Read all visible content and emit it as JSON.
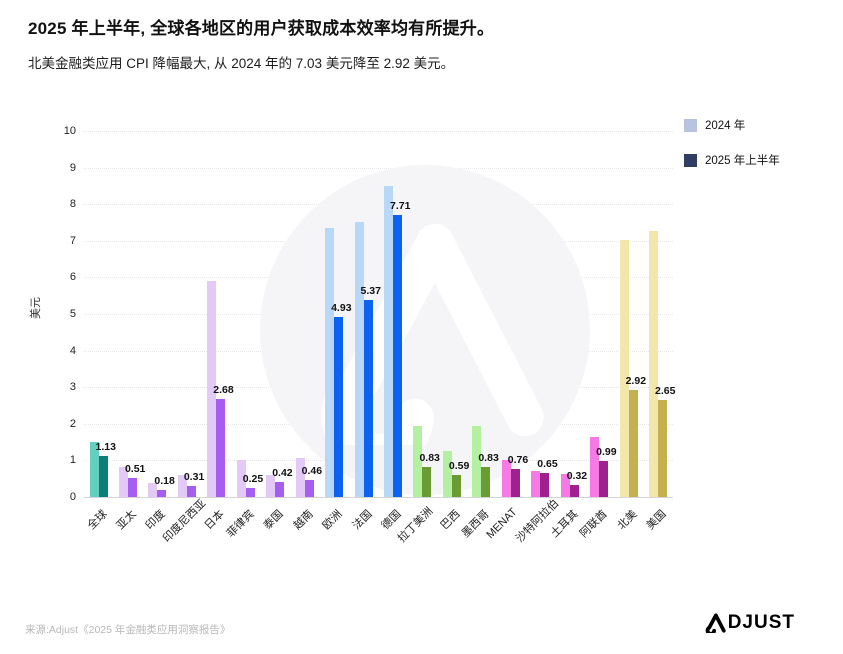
{
  "header": {
    "title": "2025 年上半年, 全球各地区的用户获取成本效率均有所提升。",
    "subtitle": "北美金融类应用 CPI 降幅最大, 从 2024 年的 7.03 美元降至 2.92 美元。"
  },
  "legend": {
    "items": [
      {
        "label": "2024 年",
        "color": "#b8c3e0"
      },
      {
        "label": "2025 年上半年",
        "color": "#2f3e62"
      }
    ]
  },
  "chart_data": {
    "type": "bar",
    "title": "2025 年上半年, 全球各地区的用户获取成本效率均有所提升。",
    "xlabel": "",
    "ylabel": "美元",
    "ylim": [
      0,
      10
    ],
    "yticks": [
      0,
      1,
      2,
      3,
      4,
      5,
      6,
      7,
      8,
      9,
      10
    ],
    "grid": true,
    "legend_position": "top-right",
    "categories": [
      "全球",
      "亚太",
      "印度",
      "印度尼西亚",
      "日本",
      "菲律宾",
      "泰国",
      "越南",
      "欧洲",
      "法国",
      "德国",
      "拉丁美洲",
      "巴西",
      "墨西哥",
      "MENAT",
      "沙特阿拉伯",
      "土耳其",
      "阿联酋",
      "北美",
      "美国"
    ],
    "series": [
      {
        "name": "2024 年",
        "values": [
          1.5,
          0.82,
          0.38,
          0.6,
          5.9,
          1.0,
          0.6,
          1.07,
          7.36,
          7.52,
          8.51,
          1.95,
          1.25,
          1.95,
          1.0,
          0.7,
          0.62,
          1.63,
          7.03,
          7.27
        ]
      },
      {
        "name": "2025 年上半年",
        "values": [
          1.13,
          0.51,
          0.18,
          0.31,
          2.68,
          0.25,
          0.42,
          0.46,
          4.93,
          5.37,
          7.71,
          0.83,
          0.59,
          0.83,
          0.76,
          0.65,
          0.32,
          0.99,
          2.92,
          2.65
        ]
      }
    ],
    "bar_labels": [
      "1.13",
      "0.51",
      "0.18",
      "0.31",
      "2.68",
      "0.25",
      "0.42",
      "0.46",
      "4.93",
      "5.37",
      "7.71",
      "0.83",
      "0.59",
      "0.83",
      "0.76",
      "0.65",
      "0.32",
      "0.99",
      "2.92",
      "2.65"
    ],
    "bar_labels_on_series": "2025 年上半年",
    "category_color_keys": [
      "teal",
      "purple",
      "purple",
      "purple",
      "purple",
      "purple",
      "purple",
      "purple",
      "blue",
      "blue",
      "blue",
      "green",
      "green",
      "green",
      "pink",
      "pink",
      "pink",
      "pink",
      "yellow",
      "yellow"
    ],
    "palette": {
      "teal": {
        "light": "#63cfc1",
        "dark": "#0e7f78"
      },
      "purple": {
        "light": "#e2c9f6",
        "dark": "#a55ef0"
      },
      "blue": {
        "light": "#b9d7f7",
        "dark": "#0b63f0"
      },
      "green": {
        "light": "#b3f0a1",
        "dark": "#6b9c34"
      },
      "pink": {
        "light": "#f779e6",
        "dark": "#9f2190"
      },
      "yellow": {
        "light": "#f2e6aa",
        "dark": "#c4b04e"
      }
    }
  },
  "footer": {
    "source": "来源:Adjust《2025 年金融类应用洞察报告》",
    "brand": "ADJUST",
    "brand_text": "DJUST"
  }
}
